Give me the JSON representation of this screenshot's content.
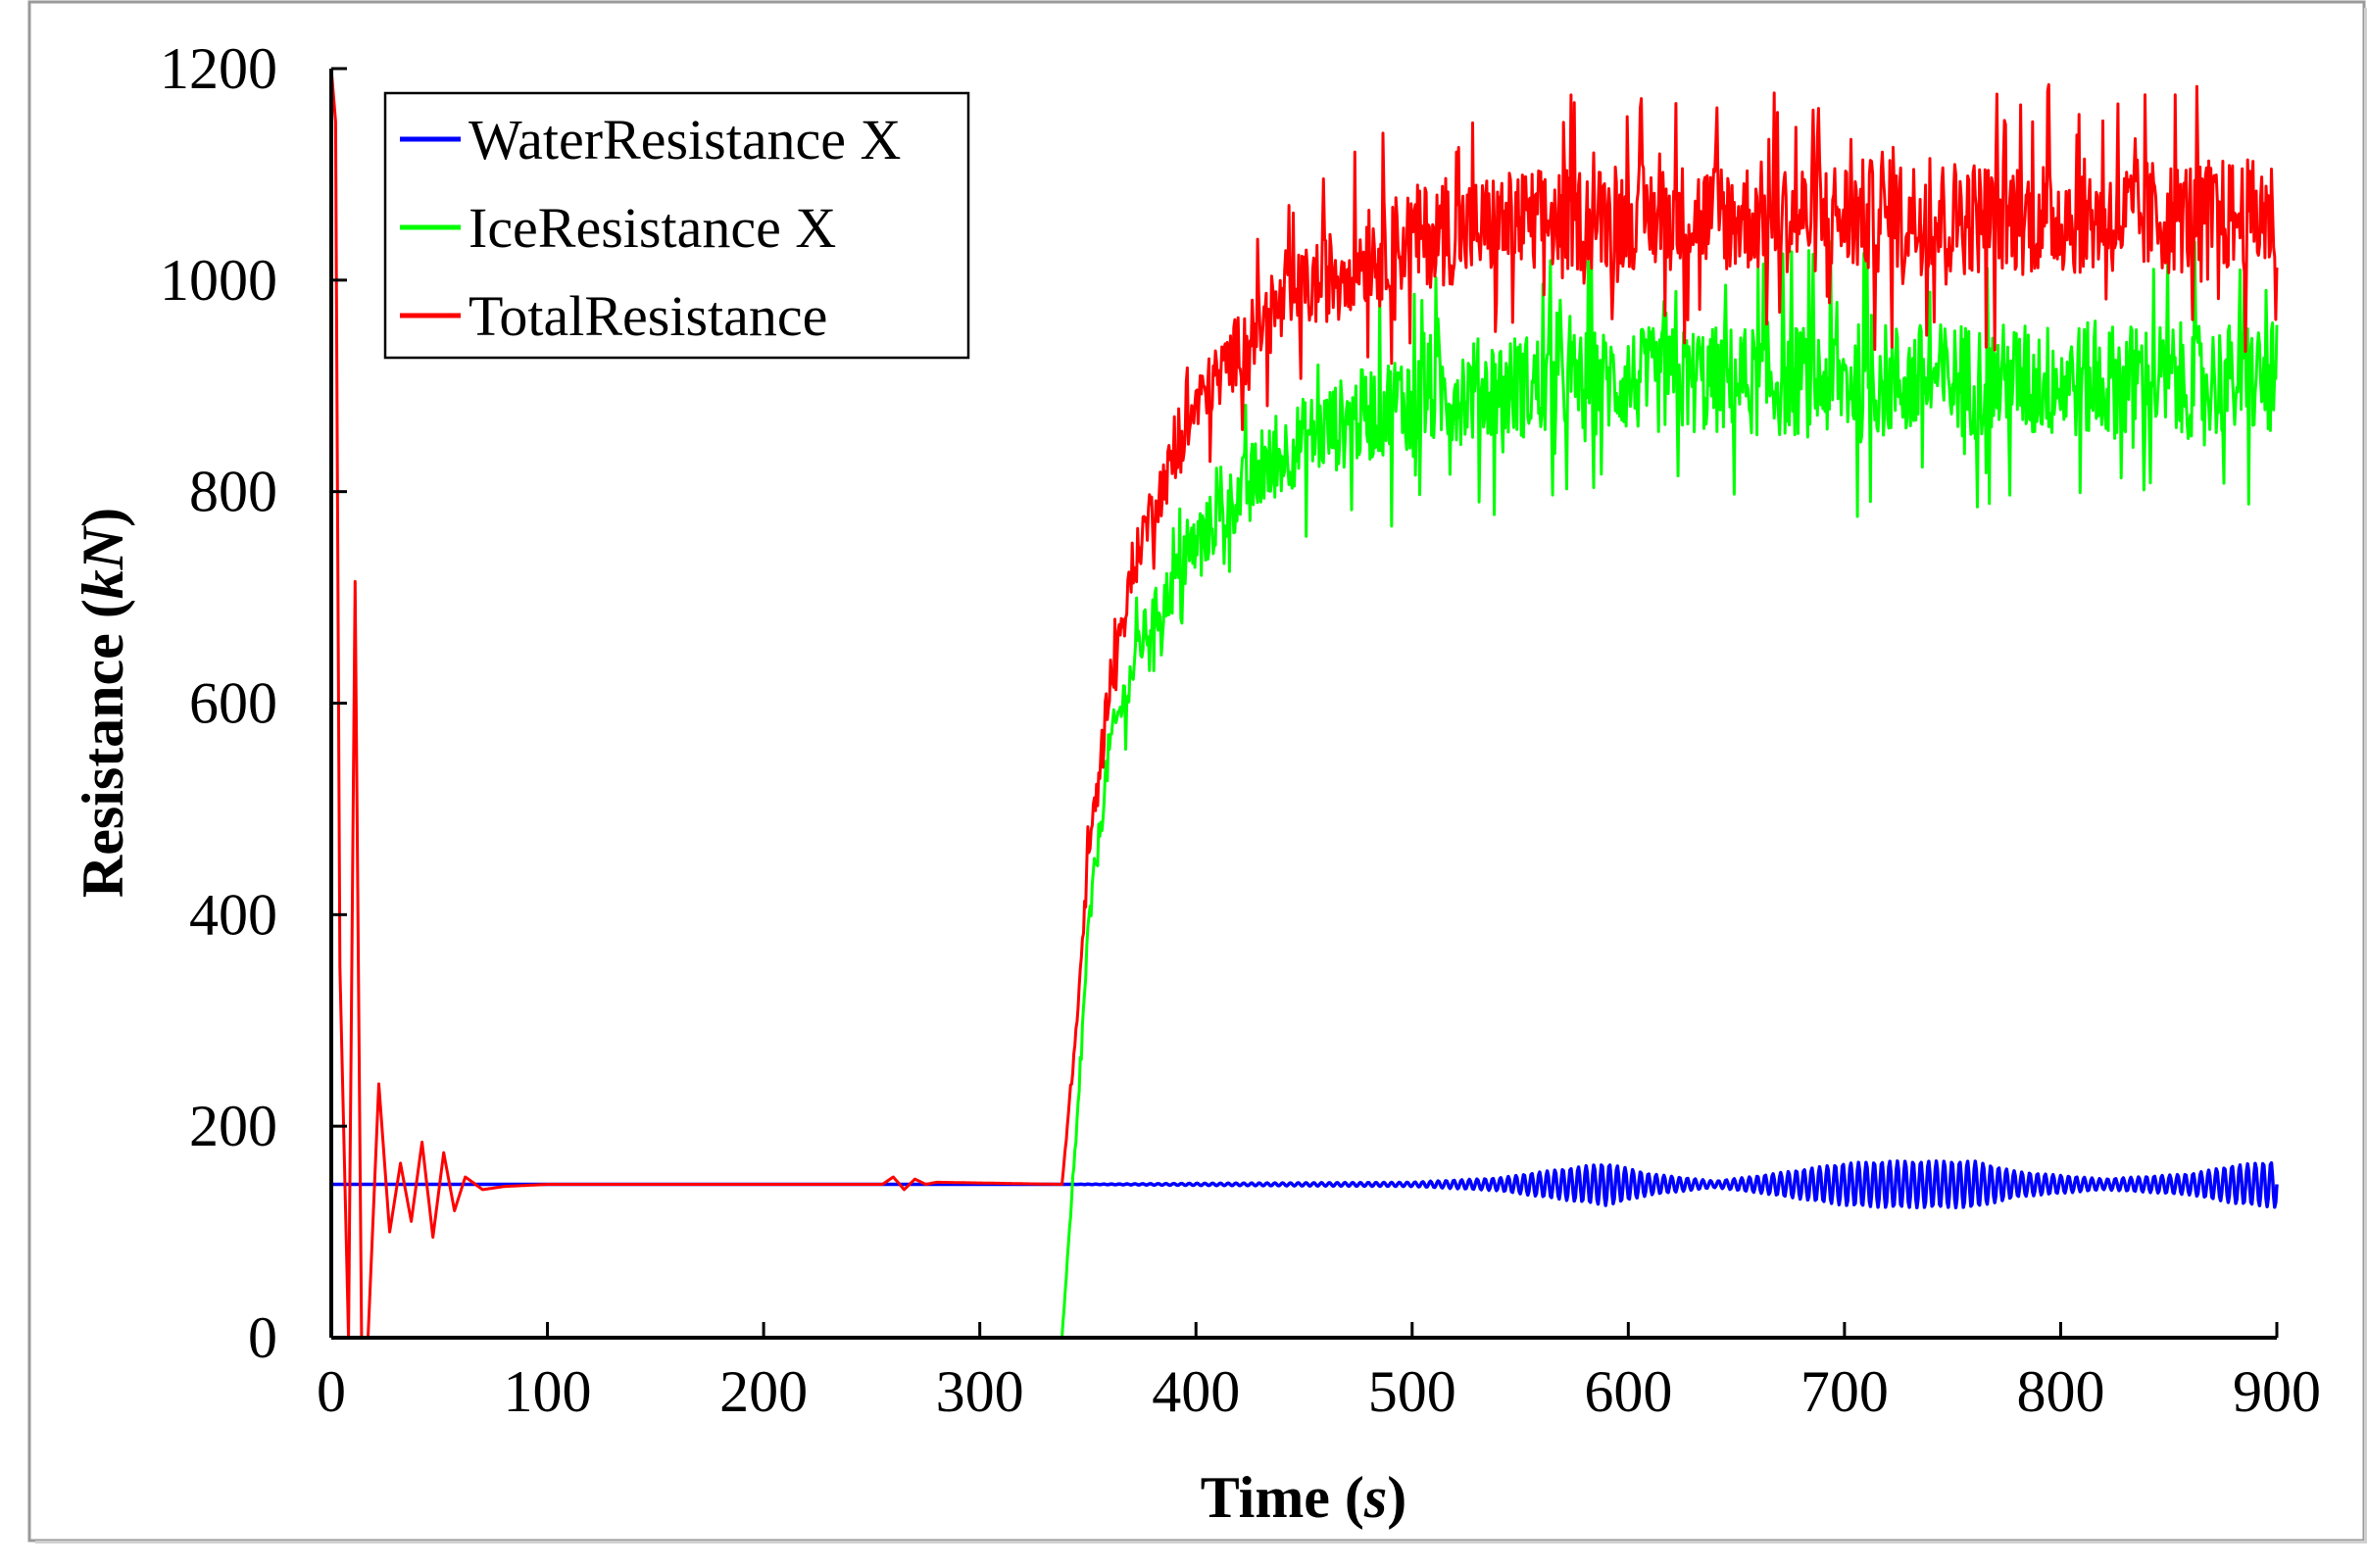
{
  "chart_data": {
    "type": "line",
    "title": "",
    "xlabel": {
      "main": "Time (",
      "unit": "s",
      "close": ")"
    },
    "ylabel": {
      "main": "Resistance (",
      "unit": "kN",
      "close": ")"
    },
    "xlim": [
      0,
      900
    ],
    "ylim": [
      0,
      1200
    ],
    "xticks": [
      0,
      100,
      200,
      300,
      400,
      500,
      600,
      700,
      800,
      900
    ],
    "yticks": [
      0,
      200,
      400,
      600,
      800,
      1000,
      1200
    ],
    "grid": false,
    "legend_position": "top-left",
    "series": [
      {
        "name": "WaterResistance X",
        "color": "#0000ff",
        "x": [
          0,
          340,
          400,
          500,
          540,
          560,
          590,
          610,
          640,
          660,
          700,
          720,
          760,
          780,
          820,
          860,
          880,
          900
        ],
        "mean": [
          145,
          145,
          145,
          145,
          145,
          145,
          145,
          145,
          145,
          145,
          145,
          145,
          145,
          145,
          145,
          145,
          145,
          145
        ],
        "amplitude": [
          0,
          0,
          1,
          2,
          6,
          12,
          20,
          10,
          3,
          8,
          20,
          22,
          22,
          12,
          5,
          10,
          18,
          22
        ]
      },
      {
        "name": "IceResistance X",
        "color": "#00ff00",
        "x": [
          0,
          338,
          345,
          350,
          360,
          375,
          400,
          425,
          450,
          475,
          500,
          550,
          600,
          700,
          800,
          900
        ],
        "mean": [
          0,
          0,
          200,
          380,
          560,
          660,
          750,
          810,
          850,
          870,
          890,
          900,
          905,
          905,
          905,
          905
        ],
        "amplitude": [
          0,
          0,
          10,
          15,
          20,
          25,
          30,
          35,
          40,
          45,
          50,
          50,
          50,
          55,
          55,
          55
        ]
      },
      {
        "name": "TotalResistance",
        "color": "#ff0000",
        "x": [
          0,
          2,
          4,
          8,
          11,
          14,
          17,
          22,
          27,
          32,
          37,
          42,
          47,
          52,
          57,
          62,
          70,
          80,
          100,
          255,
          260,
          265,
          270,
          275,
          280,
          338,
          345,
          350,
          360,
          375,
          400,
          425,
          450,
          475,
          500,
          550,
          600,
          700,
          800,
          900
        ],
        "mean": [
          1200,
          1150,
          350,
          0,
          715,
          0,
          0,
          240,
          100,
          165,
          110,
          185,
          95,
          175,
          120,
          152,
          140,
          143,
          145,
          145,
          152,
          140,
          150,
          145,
          147,
          145,
          300,
          450,
          620,
          760,
          880,
          950,
          990,
          1020,
          1040,
          1055,
          1060,
          1060,
          1060,
          1060
        ],
        "amplitude": [
          0,
          0,
          0,
          0,
          0,
          0,
          0,
          0,
          0,
          0,
          0,
          0,
          0,
          0,
          0,
          0,
          0,
          0,
          0,
          0,
          0,
          0,
          0,
          0,
          0,
          0,
          10,
          15,
          20,
          25,
          30,
          35,
          40,
          45,
          50,
          50,
          50,
          55,
          55,
          55
        ]
      }
    ]
  }
}
